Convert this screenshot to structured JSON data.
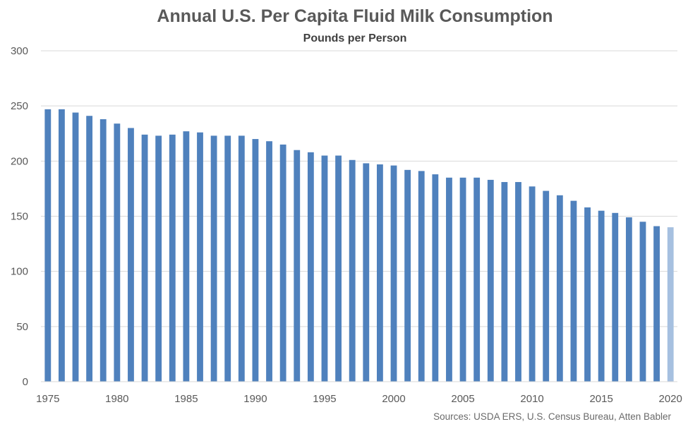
{
  "chart_data": {
    "type": "bar",
    "title": "Annual U.S. Per Capita Fluid Milk Consumption",
    "subtitle": "Pounds per Person",
    "source": "Sources: USDA ERS, U.S. Census Bureau, Atten Babler",
    "xlabel": "",
    "ylabel": "",
    "ylim": [
      0,
      300
    ],
    "yticks": [
      0,
      50,
      100,
      150,
      200,
      250,
      300
    ],
    "xtick_labels": [
      "1975",
      "1980",
      "1985",
      "1990",
      "1995",
      "2000",
      "2005",
      "2010",
      "2015",
      "2020"
    ],
    "grid": true,
    "legend": "none",
    "categories": [
      1975,
      1976,
      1977,
      1978,
      1979,
      1980,
      1981,
      1982,
      1983,
      1984,
      1985,
      1986,
      1987,
      1988,
      1989,
      1990,
      1991,
      1992,
      1993,
      1994,
      1995,
      1996,
      1997,
      1998,
      1999,
      2000,
      2001,
      2002,
      2003,
      2004,
      2005,
      2006,
      2007,
      2008,
      2009,
      2010,
      2011,
      2012,
      2013,
      2014,
      2015,
      2016,
      2017,
      2018,
      2019,
      2020
    ],
    "values": [
      247,
      247,
      244,
      241,
      238,
      234,
      230,
      224,
      223,
      224,
      227,
      226,
      223,
      223,
      223,
      220,
      218,
      215,
      210,
      208,
      205,
      205,
      201,
      198,
      197,
      196,
      192,
      191,
      188,
      185,
      185,
      185,
      183,
      181,
      181,
      177,
      173,
      169,
      164,
      158,
      155,
      153,
      149,
      145,
      141,
      140
    ],
    "colors": {
      "bar": "#4f81bd",
      "highlight": "#a6c0e0"
    },
    "highlight_category": 2020
  }
}
